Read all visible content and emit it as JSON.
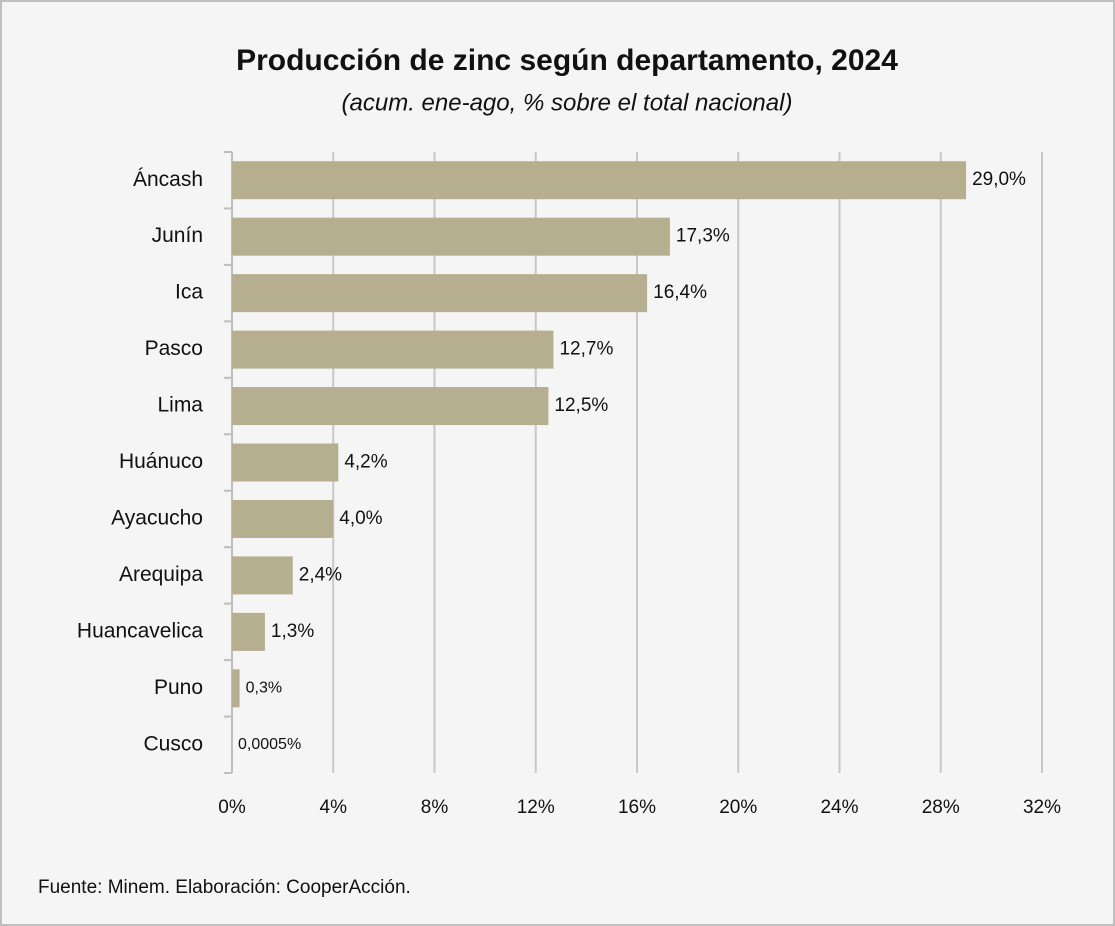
{
  "chart_data": {
    "type": "hbar",
    "title": "Producción de zinc según departamento, 2024",
    "subtitle": "(acum. ene-ago, % sobre el total nacional)",
    "source": "Fuente: Minem. Elaboración: CooperAcción.",
    "categories": [
      "Áncash",
      "Junín",
      "Ica",
      "Pasco",
      "Lima",
      "Huánuco",
      "Ayacucho",
      "Arequipa",
      "Huancavelica",
      "Puno",
      "Cusco"
    ],
    "values": [
      29.0,
      17.3,
      16.4,
      12.7,
      12.5,
      4.2,
      4.0,
      2.4,
      1.3,
      0.3,
      0.0005
    ],
    "value_labels": [
      "29,0%",
      "17,3%",
      "16,4%",
      "12,7%",
      "12,5%",
      "4,2%",
      "4,0%",
      "2,4%",
      "1,3%",
      "0,3%",
      "0,0005%"
    ],
    "color": "#b5af8f",
    "xlim": [
      0,
      32
    ],
    "xticks": [
      {
        "value": 0,
        "label": "0%"
      },
      {
        "value": 4,
        "label": "4%"
      },
      {
        "value": 8,
        "label": "8%"
      },
      {
        "value": 12,
        "label": "12%"
      },
      {
        "value": 16,
        "label": "16%"
      },
      {
        "value": 20,
        "label": "20%"
      },
      {
        "value": 24,
        "label": "24%"
      },
      {
        "value": 28,
        "label": "28%"
      },
      {
        "value": 32,
        "label": "32%"
      }
    ],
    "grid": true
  }
}
